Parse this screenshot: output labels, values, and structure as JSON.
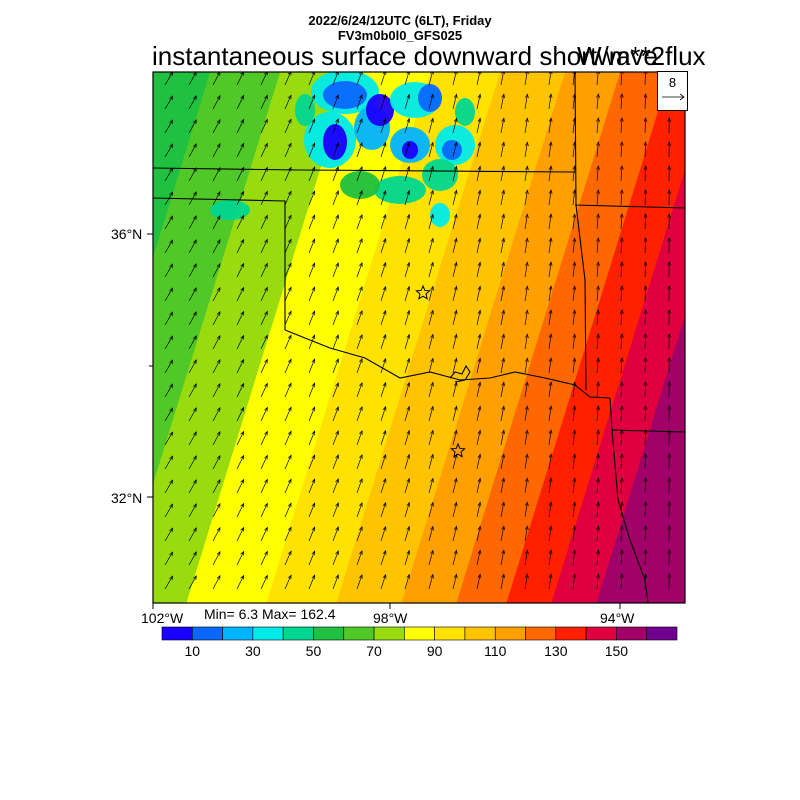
{
  "header": {
    "date_line": "2022/6/24/12UTC (6LT), Friday",
    "model_line": "FV3m0b0l0_GFS025",
    "field_title": "instantaneous surface downward shortwave flux",
    "units": "W/m**2"
  },
  "map": {
    "lat_labels": [
      "36°N",
      "32°N"
    ],
    "lon_labels": [
      "102°W",
      "98°W",
      "94°W"
    ],
    "stats": "Min= 6.3 Max= 162.4",
    "vector_reference": "8",
    "markers": [
      "star",
      "star"
    ]
  },
  "colorbar": {
    "colors": [
      "#1a00ff",
      "#0a68ff",
      "#00b4ff",
      "#00eaea",
      "#00d690",
      "#20c040",
      "#50c828",
      "#98dc10",
      "#ffff00",
      "#ffe200",
      "#ffc400",
      "#ffa000",
      "#ff6800",
      "#ff2000",
      "#e00040",
      "#a00068",
      "#700090"
    ],
    "labels": [
      "10",
      "30",
      "50",
      "70",
      "90",
      "110",
      "130",
      "150"
    ]
  }
}
